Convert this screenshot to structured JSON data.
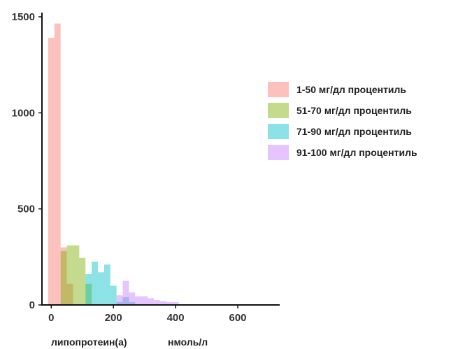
{
  "chart_data": {
    "type": "bar",
    "subtype": "overlapping-histogram",
    "title": "",
    "xlabel_parts": [
      "липопротеин(а)",
      "нмоль/л"
    ],
    "ylabel": "",
    "xlim": [
      -30,
      735
    ],
    "ylim": [
      0,
      1500
    ],
    "xticks": [
      0,
      200,
      400,
      600
    ],
    "yticks": [
      0,
      500,
      1000,
      1500
    ],
    "grid": false,
    "legend_position": "right",
    "bin_width": 20,
    "series": [
      {
        "name": "1-50 мг/дл процентиль",
        "color": "#f8766d",
        "bins": [
          {
            "x0": -10,
            "x1": 10,
            "y": 1390
          },
          {
            "x0": 10,
            "x1": 30,
            "y": 1465
          },
          {
            "x0": 30,
            "x1": 50,
            "y": 300
          },
          {
            "x0": 50,
            "x1": 70,
            "y": 110
          }
        ]
      },
      {
        "name": "51-70 мг/дл процентиль",
        "color": "#7cae00",
        "bins": [
          {
            "x0": 30,
            "x1": 50,
            "y": 280
          },
          {
            "x0": 50,
            "x1": 70,
            "y": 310
          },
          {
            "x0": 70,
            "x1": 90,
            "y": 310
          },
          {
            "x0": 90,
            "x1": 110,
            "y": 245
          },
          {
            "x0": 110,
            "x1": 130,
            "y": 110
          }
        ]
      },
      {
        "name": "71-90 мг/дл процентиль",
        "color": "#00bfc4",
        "bins": [
          {
            "x0": 110,
            "x1": 130,
            "y": 160
          },
          {
            "x0": 130,
            "x1": 150,
            "y": 225
          },
          {
            "x0": 150,
            "x1": 170,
            "y": 170
          },
          {
            "x0": 170,
            "x1": 190,
            "y": 210
          },
          {
            "x0": 190,
            "x1": 210,
            "y": 100
          },
          {
            "x0": 210,
            "x1": 230,
            "y": 15
          },
          {
            "x0": 230,
            "x1": 250,
            "y": 40
          },
          {
            "x0": 250,
            "x1": 270,
            "y": 15
          }
        ]
      },
      {
        "name": "91-100 мг/дл процентиль",
        "color": "#c77cff",
        "bins": [
          {
            "x0": 210,
            "x1": 230,
            "y": 50
          },
          {
            "x0": 230,
            "x1": 250,
            "y": 125
          },
          {
            "x0": 250,
            "x1": 270,
            "y": 65
          },
          {
            "x0": 270,
            "x1": 290,
            "y": 45
          },
          {
            "x0": 290,
            "x1": 310,
            "y": 45
          },
          {
            "x0": 310,
            "x1": 330,
            "y": 35
          },
          {
            "x0": 330,
            "x1": 350,
            "y": 25
          },
          {
            "x0": 350,
            "x1": 370,
            "y": 20
          },
          {
            "x0": 370,
            "x1": 390,
            "y": 15
          },
          {
            "x0": 390,
            "x1": 410,
            "y": 15
          }
        ]
      }
    ]
  }
}
